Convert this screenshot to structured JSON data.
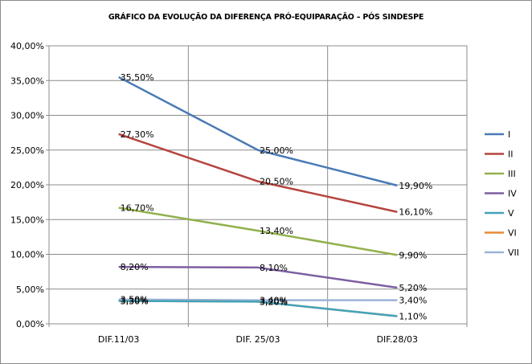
{
  "chart_data": {
    "type": "line",
    "title": "GRÁFICO DA EVOLUÇÃO DA DIFERENÇA PRÓ-EQUIPARAÇÃO – PÓS SINDESPE",
    "categories": [
      "DIF.11/03",
      "DIF. 25/03",
      "DIF.28/03"
    ],
    "ylim": [
      0,
      40
    ],
    "ytick_labels": [
      "0,00%",
      "5,00%",
      "10,00%",
      "15,00%",
      "20,00%",
      "25,00%",
      "30,00%",
      "35,00%",
      "40,00%"
    ],
    "grid": true,
    "legend_position": "right",
    "series": [
      {
        "name": "I",
        "color": "#4a7ab5",
        "values": [
          35.5,
          25.0,
          19.9
        ],
        "labels": [
          "35,50%",
          "25,00%",
          "19,90%"
        ]
      },
      {
        "name": "II",
        "color": "#b5443f",
        "values": [
          27.3,
          20.5,
          16.1
        ],
        "labels": [
          "27,30%",
          "20,50%",
          "16,10%"
        ]
      },
      {
        "name": "III",
        "color": "#93b04d",
        "values": [
          16.7,
          13.4,
          9.9
        ],
        "labels": [
          "16,70%",
          "13,40%",
          "9,90%"
        ]
      },
      {
        "name": "IV",
        "color": "#7d5fa1",
        "values": [
          8.2,
          8.1,
          5.2
        ],
        "labels": [
          "8,20%",
          "8,10%",
          "5,20%"
        ]
      },
      {
        "name": "V",
        "color": "#43a3b9",
        "values": [
          3.3,
          3.2,
          1.1
        ],
        "labels": [
          "3,30%",
          "3,20%",
          ""
        ]
      },
      {
        "name": "VI",
        "color": "#e8893a",
        "values": [
          3.3,
          3.2,
          1.1
        ],
        "labels": [
          "3,30%",
          "3,20%",
          "1,10%"
        ]
      },
      {
        "name": "VII",
        "color": "#9bb4d8",
        "values": [
          3.5,
          3.4,
          3.4
        ],
        "labels": [
          "3,50%",
          "3,40%",
          "3,40%"
        ]
      }
    ]
  }
}
